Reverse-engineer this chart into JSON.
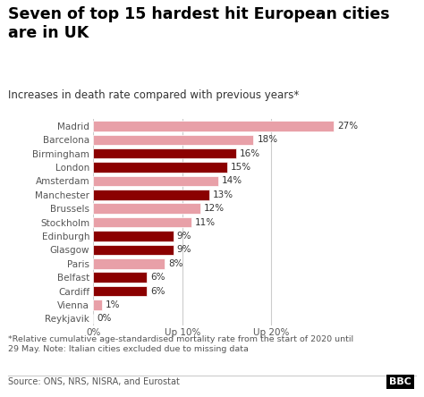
{
  "title": "Seven of top 15 hardest hit European cities\nare in UK",
  "subtitle": "Increases in death rate compared with previous years*",
  "cities": [
    "Madrid",
    "Barcelona",
    "Birmingham",
    "London",
    "Amsterdam",
    "Manchester",
    "Brussels",
    "Stockholm",
    "Edinburgh",
    "Glasgow",
    "Paris",
    "Belfast",
    "Cardiff",
    "Vienna",
    "Reykjavik"
  ],
  "values": [
    27,
    18,
    16,
    15,
    14,
    13,
    12,
    11,
    9,
    9,
    8,
    6,
    6,
    1,
    0
  ],
  "colors": [
    "#e8a0a8",
    "#e8a0a8",
    "#8b0000",
    "#8b0000",
    "#e8a0a8",
    "#8b0000",
    "#e8a0a8",
    "#e8a0a8",
    "#8b0000",
    "#8b0000",
    "#e8a0a8",
    "#8b0000",
    "#8b0000",
    "#e8a0a8",
    "#e8a0a8"
  ],
  "footnote": "*Relative cumulative age-standardised mortality rate from the start of 2020 until\n29 May. Note: Italian cities excluded due to missing data",
  "source": "Source: ONS, NRS, NISRA, and Eurostat",
  "background_color": "#ffffff",
  "title_fontsize": 12.5,
  "subtitle_fontsize": 8.5,
  "label_fontsize": 7.5,
  "tick_fontsize": 7.5,
  "footnote_fontsize": 6.8,
  "source_fontsize": 7,
  "xlim": [
    0,
    30
  ],
  "xticks": [
    0,
    10,
    20
  ],
  "xtick_labels": [
    "0%",
    "Up 10%",
    "Up 20%"
  ]
}
